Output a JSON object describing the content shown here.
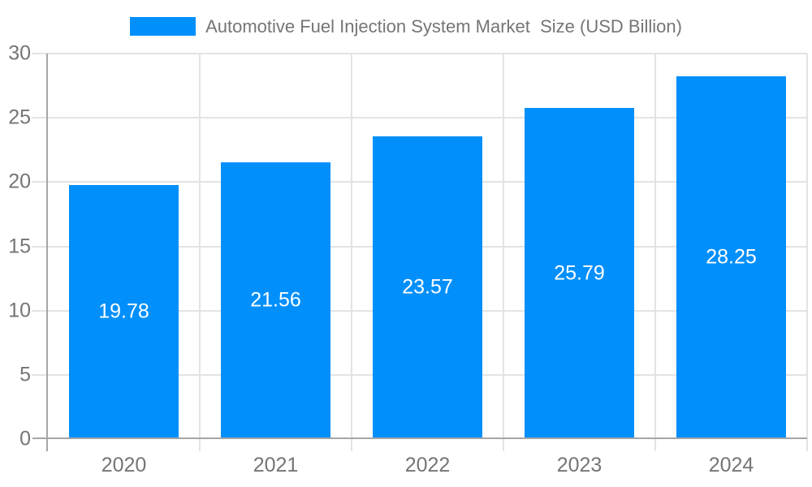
{
  "page": {
    "background": "#ffffff"
  },
  "legend": {
    "label": "Automotive Fuel Injection System Market  Size (USD Billion)"
  },
  "chart_data": {
    "type": "bar",
    "title": "Automotive Fuel Injection System Market  Size (USD Billion)",
    "categories": [
      "2020",
      "2021",
      "2022",
      "2023",
      "2024"
    ],
    "values": [
      19.78,
      21.56,
      23.57,
      25.79,
      28.25
    ],
    "value_labels": [
      "19.78",
      "21.56",
      "23.57",
      "25.79",
      "28.25"
    ],
    "xlabel": "",
    "ylabel": "",
    "ylim": [
      0,
      30
    ],
    "yticks": [
      0,
      5,
      10,
      15,
      20,
      25,
      30
    ],
    "grid": true,
    "legend_position": "top",
    "colors": {
      "bar": "#008FFB",
      "value_label": "#ffffff",
      "axis_text": "#757575",
      "grid_line": "#e3e3e3",
      "axis_line": "#a6a6a6",
      "background": "#ffffff"
    }
  }
}
